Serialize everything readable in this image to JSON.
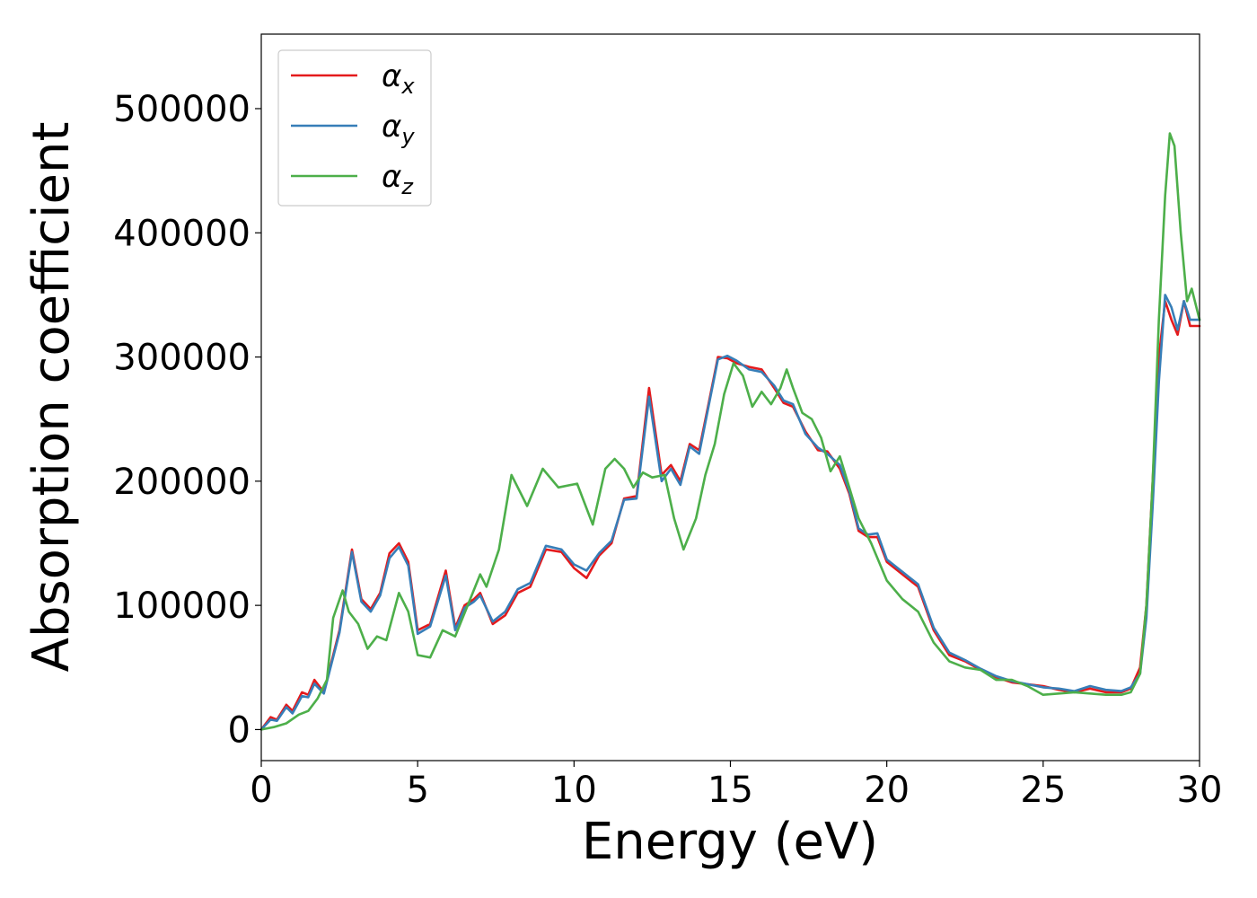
{
  "chart_data": {
    "type": "line",
    "title": "",
    "xlabel": "Energy (eV)",
    "ylabel": "Absorption coefficient",
    "xlim": [
      0,
      30
    ],
    "ylim": [
      -25000,
      560000
    ],
    "xticks": [
      0,
      5,
      10,
      15,
      20,
      25,
      30
    ],
    "yticks": [
      0,
      100000,
      200000,
      300000,
      400000,
      500000
    ],
    "grid": false,
    "legend_position": "top-left",
    "series": [
      {
        "name": "α",
        "subscript": "x",
        "color": "#e41a1c",
        "x": [
          0,
          0.3,
          0.5,
          0.8,
          1.0,
          1.3,
          1.5,
          1.7,
          2.0,
          2.5,
          2.9,
          3.2,
          3.5,
          3.8,
          4.1,
          4.4,
          4.7,
          5.0,
          5.4,
          5.9,
          6.2,
          6.5,
          6.8,
          7.0,
          7.4,
          7.8,
          8.2,
          8.6,
          9.1,
          9.6,
          10.0,
          10.4,
          10.8,
          11.2,
          11.6,
          12.0,
          12.4,
          12.8,
          13.1,
          13.4,
          13.7,
          14.0,
          14.3,
          14.6,
          14.9,
          15.2,
          15.6,
          16.0,
          16.4,
          16.7,
          17.0,
          17.4,
          17.8,
          18.1,
          18.5,
          18.8,
          19.1,
          19.4,
          19.7,
          20.0,
          20.5,
          21.0,
          21.5,
          22.0,
          22.5,
          23.0,
          23.5,
          24.0,
          25.0,
          25.5,
          26.0,
          26.5,
          27.0,
          27.5,
          27.8,
          28.1,
          28.3,
          28.5,
          28.7,
          28.9,
          29.1,
          29.3,
          29.5,
          29.7,
          29.85,
          30.0
        ],
        "values": [
          0,
          10000,
          8000,
          20000,
          15000,
          30000,
          28000,
          40000,
          30000,
          80000,
          145000,
          105000,
          97000,
          110000,
          142000,
          150000,
          135000,
          80000,
          85000,
          128000,
          82000,
          100000,
          105000,
          110000,
          85000,
          92000,
          110000,
          115000,
          145000,
          143000,
          130000,
          122000,
          140000,
          150000,
          186000,
          188000,
          275000,
          205000,
          213000,
          200000,
          230000,
          225000,
          262000,
          300000,
          299000,
          295000,
          292000,
          290000,
          275000,
          263000,
          260000,
          240000,
          225000,
          224000,
          210000,
          190000,
          160000,
          155000,
          155000,
          135000,
          125000,
          115000,
          80000,
          60000,
          55000,
          48000,
          42000,
          38000,
          35000,
          32000,
          30000,
          33000,
          30000,
          30000,
          33000,
          50000,
          100000,
          200000,
          300000,
          345000,
          330000,
          318000,
          345000,
          325000,
          325000,
          325000
        ]
      },
      {
        "name": "α",
        "subscript": "y",
        "color": "#377eb8",
        "x": [
          0,
          0.3,
          0.5,
          0.8,
          1.0,
          1.3,
          1.5,
          1.7,
          2.0,
          2.5,
          2.9,
          3.2,
          3.5,
          3.8,
          4.1,
          4.4,
          4.7,
          5.0,
          5.4,
          5.9,
          6.2,
          6.5,
          6.8,
          7.0,
          7.4,
          7.8,
          8.2,
          8.6,
          9.1,
          9.6,
          10.0,
          10.4,
          10.8,
          11.2,
          11.6,
          12.0,
          12.4,
          12.8,
          13.1,
          13.4,
          13.7,
          14.0,
          14.3,
          14.6,
          14.9,
          15.2,
          15.6,
          16.0,
          16.4,
          16.7,
          17.0,
          17.4,
          17.8,
          18.1,
          18.5,
          18.8,
          19.1,
          19.4,
          19.7,
          20.0,
          20.5,
          21.0,
          21.5,
          22.0,
          22.5,
          23.0,
          23.5,
          24.0,
          25.0,
          25.5,
          26.0,
          26.5,
          27.0,
          27.5,
          27.8,
          28.1,
          28.3,
          28.5,
          28.7,
          28.9,
          29.1,
          29.3,
          29.5,
          29.7,
          29.85,
          30.0
        ],
        "values": [
          0,
          8000,
          7000,
          18000,
          13000,
          27000,
          26000,
          37000,
          29000,
          78000,
          143000,
          103000,
          95000,
          108000,
          138000,
          147000,
          132000,
          77000,
          83000,
          124000,
          80000,
          98000,
          103000,
          108000,
          87000,
          95000,
          113000,
          118000,
          148000,
          145000,
          133000,
          128000,
          142000,
          152000,
          185000,
          186000,
          268000,
          200000,
          210000,
          197000,
          228000,
          222000,
          260000,
          298000,
          301000,
          297000,
          290000,
          288000,
          277000,
          265000,
          262000,
          238000,
          227000,
          222000,
          213000,
          192000,
          162000,
          157000,
          158000,
          137000,
          127000,
          117000,
          82000,
          62000,
          56000,
          49000,
          43000,
          39000,
          34000,
          33000,
          31000,
          35000,
          32000,
          31000,
          34000,
          45000,
          90000,
          180000,
          280000,
          350000,
          340000,
          322000,
          345000,
          330000,
          330000,
          330000
        ]
      },
      {
        "name": "α",
        "subscript": "z",
        "color": "#4daf4a",
        "x": [
          0,
          0.4,
          0.8,
          1.2,
          1.5,
          1.8,
          2.1,
          2.3,
          2.6,
          2.8,
          3.1,
          3.4,
          3.7,
          4.0,
          4.4,
          4.7,
          5.0,
          5.4,
          5.8,
          6.2,
          6.6,
          7.0,
          7.2,
          7.6,
          8.0,
          8.5,
          9.0,
          9.5,
          10.1,
          10.6,
          11.0,
          11.3,
          11.6,
          11.9,
          12.2,
          12.5,
          12.9,
          13.2,
          13.5,
          13.9,
          14.2,
          14.5,
          14.8,
          15.1,
          15.4,
          15.7,
          16.0,
          16.3,
          16.6,
          16.8,
          17.0,
          17.3,
          17.6,
          17.9,
          18.2,
          18.5,
          18.8,
          19.1,
          19.5,
          20.0,
          20.5,
          21.0,
          21.5,
          22.0,
          22.5,
          23.0,
          23.5,
          24.0,
          24.5,
          25.0,
          26.0,
          26.5,
          27.0,
          27.5,
          27.8,
          28.1,
          28.3,
          28.5,
          28.7,
          28.9,
          29.05,
          29.2,
          29.4,
          29.6,
          29.75,
          29.9,
          30.0
        ],
        "values": [
          0,
          2000,
          5000,
          12000,
          15000,
          25000,
          40000,
          90000,
          112000,
          95000,
          85000,
          65000,
          75000,
          72000,
          110000,
          95000,
          60000,
          58000,
          80000,
          75000,
          100000,
          125000,
          115000,
          145000,
          205000,
          180000,
          210000,
          195000,
          198000,
          165000,
          210000,
          218000,
          210000,
          195000,
          207000,
          203000,
          205000,
          170000,
          145000,
          170000,
          205000,
          230000,
          270000,
          295000,
          285000,
          260000,
          272000,
          262000,
          275000,
          290000,
          275000,
          255000,
          250000,
          235000,
          208000,
          220000,
          195000,
          170000,
          150000,
          120000,
          105000,
          95000,
          70000,
          55000,
          50000,
          48000,
          40000,
          40000,
          35000,
          28000,
          30000,
          29000,
          28000,
          28000,
          30000,
          45000,
          100000,
          200000,
          330000,
          430000,
          480000,
          470000,
          400000,
          345000,
          355000,
          340000,
          330000
        ]
      }
    ]
  }
}
